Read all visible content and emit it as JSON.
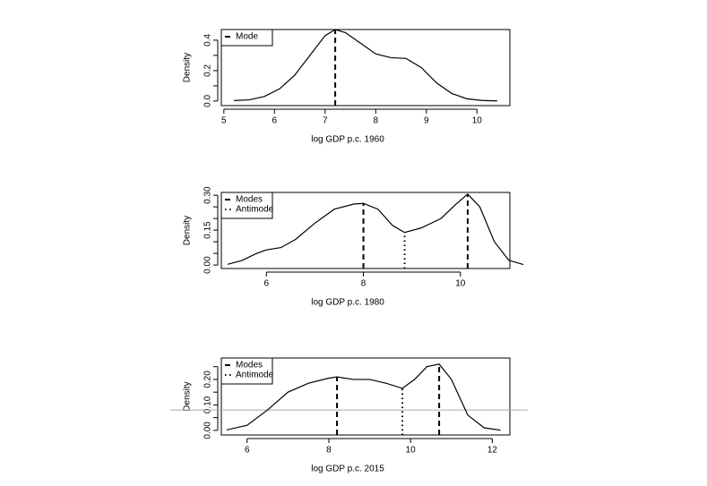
{
  "chart_data": [
    {
      "type": "line",
      "xlabel": "log GDP p.c. 1960",
      "ylabel": "Density",
      "color": "#000000",
      "x": [
        5.2,
        5.5,
        5.8,
        6.1,
        6.4,
        6.7,
        7.0,
        7.2,
        7.4,
        7.7,
        8.0,
        8.3,
        8.6,
        8.9,
        9.2,
        9.5,
        9.8,
        10.1,
        10.4
      ],
      "values": [
        0.003,
        0.008,
        0.03,
        0.08,
        0.17,
        0.3,
        0.43,
        0.47,
        0.45,
        0.38,
        0.31,
        0.285,
        0.28,
        0.22,
        0.12,
        0.05,
        0.015,
        0.004,
        0.001
      ],
      "xlim": [
        4.95,
        10.65
      ],
      "ylim": [
        -0.03,
        0.47
      ],
      "xticks": [
        5,
        6,
        7,
        8,
        9,
        10
      ],
      "yticks": [
        {
          "value": 0,
          "label": "0.0"
        },
        {
          "value": 0.1,
          "label": null
        },
        {
          "value": 0.2,
          "label": "0.2"
        },
        {
          "value": 0.3,
          "label": null
        },
        {
          "value": 0.4,
          "label": "0.4"
        }
      ],
      "legend": "top-left",
      "markers": [
        {
          "name": "Mode",
          "style": "dashed",
          "x": [
            7.2
          ],
          "values": [
            0.47
          ]
        }
      ]
    },
    {
      "type": "line",
      "xlabel": "log GDP p.c. 1980",
      "ylabel": "Density",
      "color": "#000000",
      "x": [
        5.2,
        5.5,
        5.8,
        6.0,
        6.3,
        6.6,
        7.0,
        7.4,
        7.8,
        8.0,
        8.3,
        8.6,
        8.85,
        9.2,
        9.6,
        9.9,
        10.15,
        10.4,
        10.7,
        11.0,
        11.3
      ],
      "values": [
        0.003,
        0.02,
        0.05,
        0.065,
        0.075,
        0.11,
        0.18,
        0.24,
        0.262,
        0.265,
        0.24,
        0.17,
        0.14,
        0.16,
        0.2,
        0.26,
        0.305,
        0.25,
        0.1,
        0.02,
        0.002
      ],
      "xlim": [
        5.07,
        11.02
      ],
      "ylim": [
        -0.015,
        0.312
      ],
      "xticks": [
        6,
        8,
        10
      ],
      "yticks": [
        {
          "value": 0,
          "label": "0.00"
        },
        {
          "value": 0.05,
          "label": null
        },
        {
          "value": 0.1,
          "label": null
        },
        {
          "value": 0.15,
          "label": "0.15"
        },
        {
          "value": 0.2,
          "label": null
        },
        {
          "value": 0.25,
          "label": null
        },
        {
          "value": 0.3,
          "label": "0.30"
        }
      ],
      "legend": "top-left",
      "markers": [
        {
          "name": "Modes",
          "style": "dashed",
          "x": [
            8.0,
            10.15
          ],
          "values": [
            0.265,
            0.305
          ]
        },
        {
          "name": "Antimode",
          "style": "dotted",
          "x": [
            8.85
          ],
          "values": [
            0.14
          ]
        }
      ]
    },
    {
      "type": "line",
      "xlabel": "log GDP p.c. 2015",
      "ylabel": "Density",
      "color": "#000000",
      "x": [
        5.5,
        6.0,
        6.5,
        7.0,
        7.5,
        8.0,
        8.2,
        8.6,
        9.0,
        9.4,
        9.8,
        10.1,
        10.4,
        10.7,
        11.0,
        11.4,
        11.8,
        12.2
      ],
      "values": [
        0.002,
        0.02,
        0.08,
        0.15,
        0.185,
        0.205,
        0.21,
        0.2,
        0.2,
        0.185,
        0.165,
        0.2,
        0.25,
        0.26,
        0.2,
        0.06,
        0.01,
        0.001
      ],
      "xlim": [
        5.37,
        12.43
      ],
      "ylim": [
        -0.018,
        0.284
      ],
      "xticks": [
        6,
        8,
        10,
        12
      ],
      "yticks": [
        {
          "value": 0,
          "label": "0.00"
        },
        {
          "value": 0.05,
          "label": null
        },
        {
          "value": 0.1,
          "label": "0.10"
        },
        {
          "value": 0.15,
          "label": null
        },
        {
          "value": 0.2,
          "label": "0.20"
        },
        {
          "value": 0.25,
          "label": null
        }
      ],
      "legend": "top-left",
      "reference_line": 0.08,
      "reference_color": "#aaaaaa",
      "markers": [
        {
          "name": "Modes",
          "style": "dashed",
          "x": [
            8.2,
            10.7
          ],
          "values": [
            0.21,
            0.26
          ]
        },
        {
          "name": "Antimode",
          "style": "dotted",
          "x": [
            9.8
          ],
          "values": [
            0.165
          ]
        }
      ]
    }
  ]
}
